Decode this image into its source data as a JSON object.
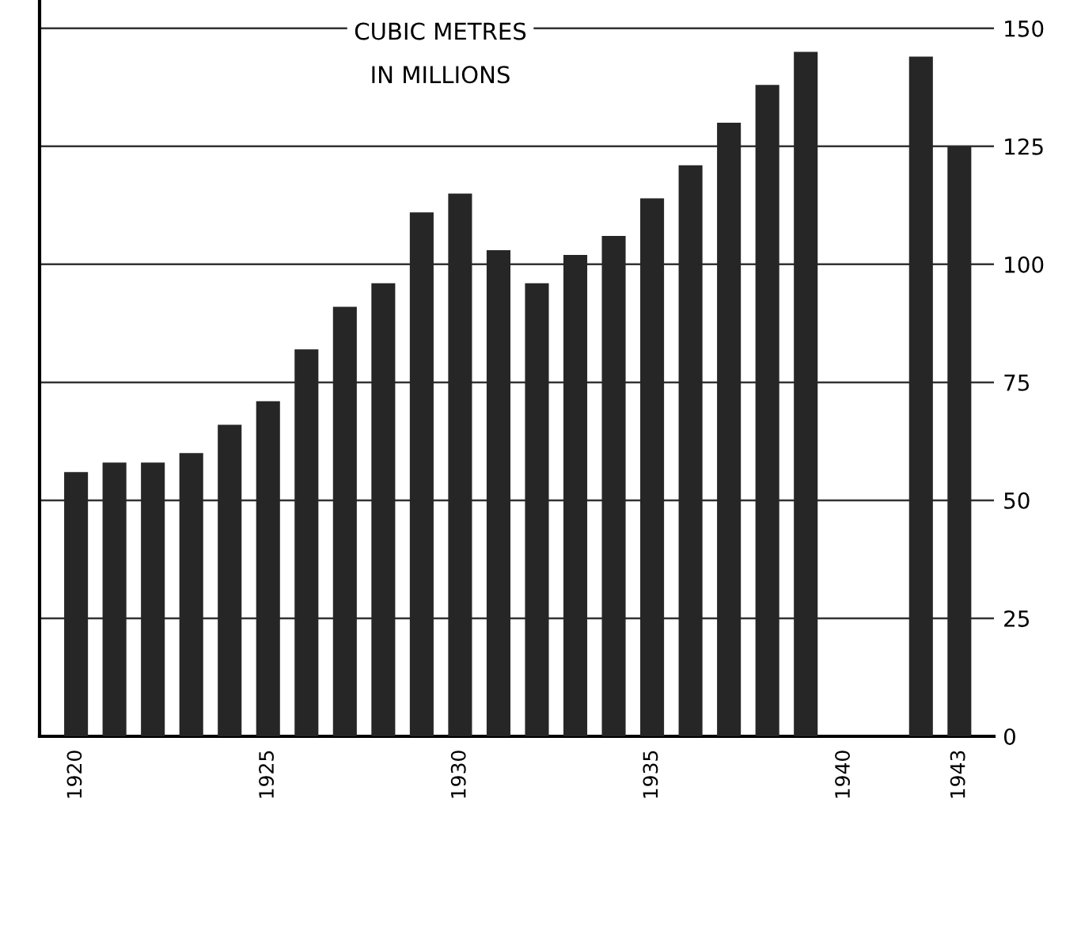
{
  "chart_data": {
    "type": "bar",
    "title": "CUBIC METRES\nIN MILLIONS",
    "categories": [
      "1920",
      null,
      null,
      null,
      null,
      "1925",
      null,
      null,
      null,
      null,
      "1930",
      null,
      null,
      null,
      null,
      "1935",
      null,
      null,
      null,
      null,
      "1940",
      null,
      null,
      "1943"
    ],
    "values": [
      56,
      58,
      58,
      60,
      66,
      71,
      82,
      91,
      96,
      111,
      115,
      103,
      96,
      102,
      106,
      114,
      121,
      130,
      138,
      145,
      null,
      null,
      144,
      125
    ],
    "color": "#262626",
    "ylim": [
      0,
      156
    ],
    "yticks": [
      0,
      25,
      50,
      75,
      100,
      125,
      150
    ],
    "grid": "y"
  }
}
